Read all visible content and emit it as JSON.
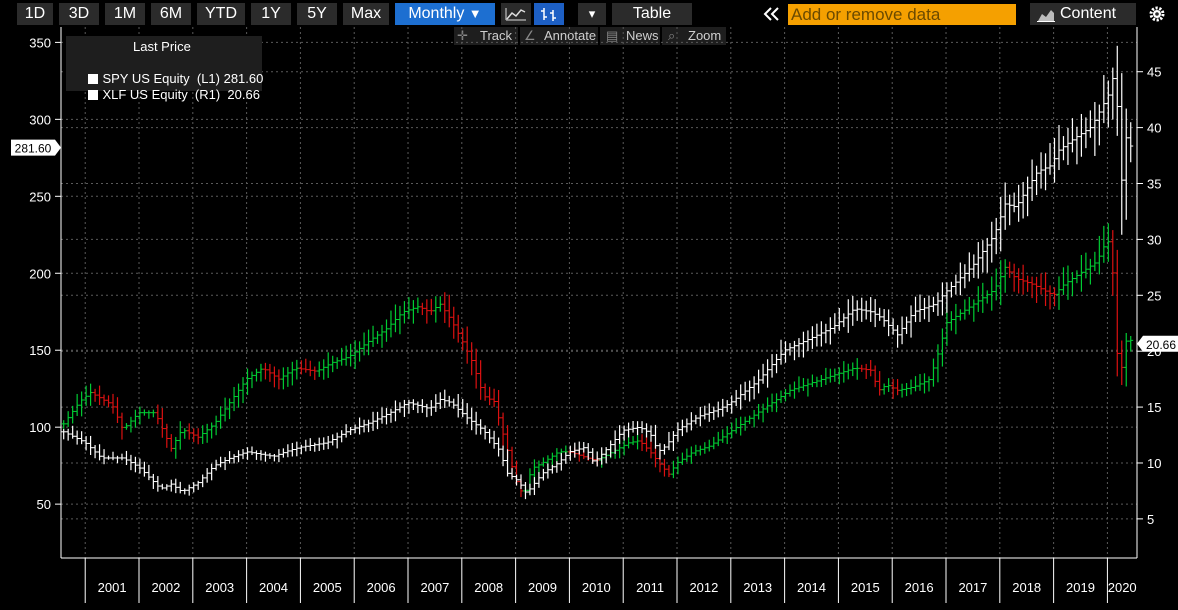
{
  "toolbar": {
    "periods": [
      "1D",
      "3D",
      "1M",
      "6M",
      "YTD",
      "1Y",
      "5Y",
      "Max"
    ],
    "frequency": "Monthly",
    "frequency_caret": "▼",
    "chart_style_icon": "line-chart-icon",
    "bar_style_icon": "ohlc-bar-icon",
    "dropdown_caret": "▾",
    "table_label": "Table",
    "collapse_icon": "double-chevron-left-icon",
    "search_placeholder": "Add or remove data",
    "content_label": "Content",
    "content_icon": "area-chart-icon",
    "settings_icon": "gear-icon"
  },
  "subtoolbar": {
    "track": "Track",
    "annotate": "Annotate",
    "news": "News",
    "zoom": "Zoom"
  },
  "legend": {
    "title": "Last Price",
    "rows": [
      {
        "label": "SPY US Equity  (L1) 281.60",
        "color": "#ffffff"
      },
      {
        "label": "XLF US Equity  (R1)  20.66",
        "color": "#ffffff"
      }
    ]
  },
  "colors": {
    "up": "#00cc33",
    "down": "#dd1111",
    "spy": "#ffffff",
    "background": "#000000"
  },
  "chart_data": {
    "type": "line",
    "bar_style": "ohlc-monthly",
    "grid": true,
    "x_ticks": [
      "2001",
      "2002",
      "2003",
      "2004",
      "2005",
      "2006",
      "2007",
      "2008",
      "2009",
      "2010",
      "2011",
      "2012",
      "2013",
      "2014",
      "2015",
      "2016",
      "2017",
      "2018",
      "2019",
      "2020"
    ],
    "left_axis": {
      "ticks": [
        50,
        100,
        150,
        200,
        250,
        300,
        350
      ],
      "range": [
        15,
        360
      ],
      "last_value_label": "281.60",
      "last_value": 281.6
    },
    "right_axis": {
      "ticks": [
        5,
        10,
        15,
        20,
        25,
        30,
        35,
        40,
        45
      ],
      "range": [
        1.5,
        49
      ],
      "last_value_label": "20.66",
      "last_value": 20.66
    },
    "x_range": [
      2000.55,
      2020.55
    ],
    "series": [
      {
        "name": "SPY US Equity",
        "axis": "left",
        "color": "#ffffff",
        "x": [
          2000.6,
          2001.0,
          2001.3,
          2001.7,
          2002.0,
          2002.4,
          2002.6,
          2002.8,
          2003.1,
          2003.4,
          2003.7,
          2004.0,
          2004.5,
          2004.8,
          2005.0,
          2005.5,
          2005.9,
          2006.3,
          2006.7,
          2007.0,
          2007.4,
          2007.6,
          2007.8,
          2008.1,
          2008.4,
          2008.7,
          2008.85,
          2009.05,
          2009.2,
          2009.5,
          2009.8,
          2010.0,
          2010.3,
          2010.45,
          2010.7,
          2011.0,
          2011.3,
          2011.5,
          2011.65,
          2011.8,
          2012.0,
          2012.4,
          2012.8,
          2013.0,
          2013.5,
          2014.0,
          2014.5,
          2014.9,
          2015.3,
          2015.6,
          2015.8,
          2016.1,
          2016.4,
          2016.8,
          2017.0,
          2017.5,
          2017.9,
          2018.1,
          2018.3,
          2018.7,
          2018.95,
          2019.1,
          2019.4,
          2019.7,
          2019.9,
          2020.05,
          2020.15,
          2020.25,
          2020.35,
          2020.45
        ],
        "y": [
          97,
          90,
          80,
          80,
          74,
          60,
          63,
          58,
          64,
          75,
          80,
          84,
          81,
          85,
          87,
          90,
          98,
          103,
          110,
          116,
          112,
          118,
          116,
          106,
          98,
          85,
          70,
          65,
          57,
          70,
          77,
          84,
          87,
          77,
          86,
          98,
          100,
          96,
          84,
          88,
          98,
          107,
          112,
          116,
          130,
          150,
          158,
          165,
          177,
          175,
          171,
          160,
          175,
          180,
          188,
          205,
          225,
          245,
          243,
          266,
          270,
          280,
          288,
          295,
          308,
          318,
          335,
          255,
          288,
          281.6
        ]
      },
      {
        "name": "XLF US Equity",
        "axis": "right",
        "color": "#00cc33",
        "x": [
          2000.6,
          2000.9,
          2001.1,
          2001.5,
          2001.7,
          2002.0,
          2002.3,
          2002.6,
          2002.8,
          2003.1,
          2003.4,
          2003.7,
          2004.0,
          2004.3,
          2004.6,
          2004.9,
          2005.3,
          2005.6,
          2005.9,
          2006.3,
          2006.6,
          2006.9,
          2007.2,
          2007.4,
          2007.6,
          2007.8,
          2008.0,
          2008.2,
          2008.4,
          2008.6,
          2008.8,
          2009.0,
          2009.15,
          2009.3,
          2009.5,
          2009.8,
          2010.0,
          2010.3,
          2010.5,
          2010.8,
          2011.1,
          2011.3,
          2011.5,
          2011.7,
          2011.85,
          2012.0,
          2012.3,
          2012.6,
          2012.9,
          2013.2,
          2013.5,
          2013.8,
          2014.1,
          2014.4,
          2014.7,
          2015.0,
          2015.3,
          2015.6,
          2015.75,
          2015.9,
          2016.1,
          2016.4,
          2016.7,
          2016.9,
          2017.0,
          2017.3,
          2017.6,
          2017.9,
          2018.1,
          2018.3,
          2018.6,
          2018.8,
          2019.0,
          2019.2,
          2019.5,
          2019.8,
          2020.0,
          2020.08,
          2020.17,
          2020.27,
          2020.37,
          2020.47
        ],
        "y": [
          13.5,
          15.5,
          16.3,
          15.2,
          13.0,
          14.5,
          14.5,
          11.3,
          13.0,
          12.3,
          13.5,
          15.5,
          17.5,
          18.5,
          17.5,
          18.5,
          18.2,
          19.0,
          19.5,
          21.0,
          22.0,
          23.5,
          24.0,
          23.5,
          24.2,
          22.8,
          21.0,
          19.0,
          16.0,
          15.5,
          12.0,
          8.5,
          7.0,
          9.5,
          10.0,
          11.0,
          11.0,
          10.5,
          10.2,
          11.0,
          11.8,
          12.0,
          11.0,
          9.8,
          9.0,
          10.0,
          11.0,
          11.5,
          12.5,
          13.5,
          14.5,
          15.5,
          16.5,
          17.0,
          17.5,
          18.0,
          18.5,
          18.3,
          16.5,
          17.0,
          16.5,
          16.8,
          17.5,
          20.5,
          22.5,
          23.5,
          24.5,
          25.5,
          27.5,
          26.5,
          26.0,
          25.5,
          25.0,
          26.0,
          27.0,
          28.0,
          30.0,
          29.0,
          20.0,
          18.5,
          21.5,
          20.66
        ]
      }
    ]
  }
}
